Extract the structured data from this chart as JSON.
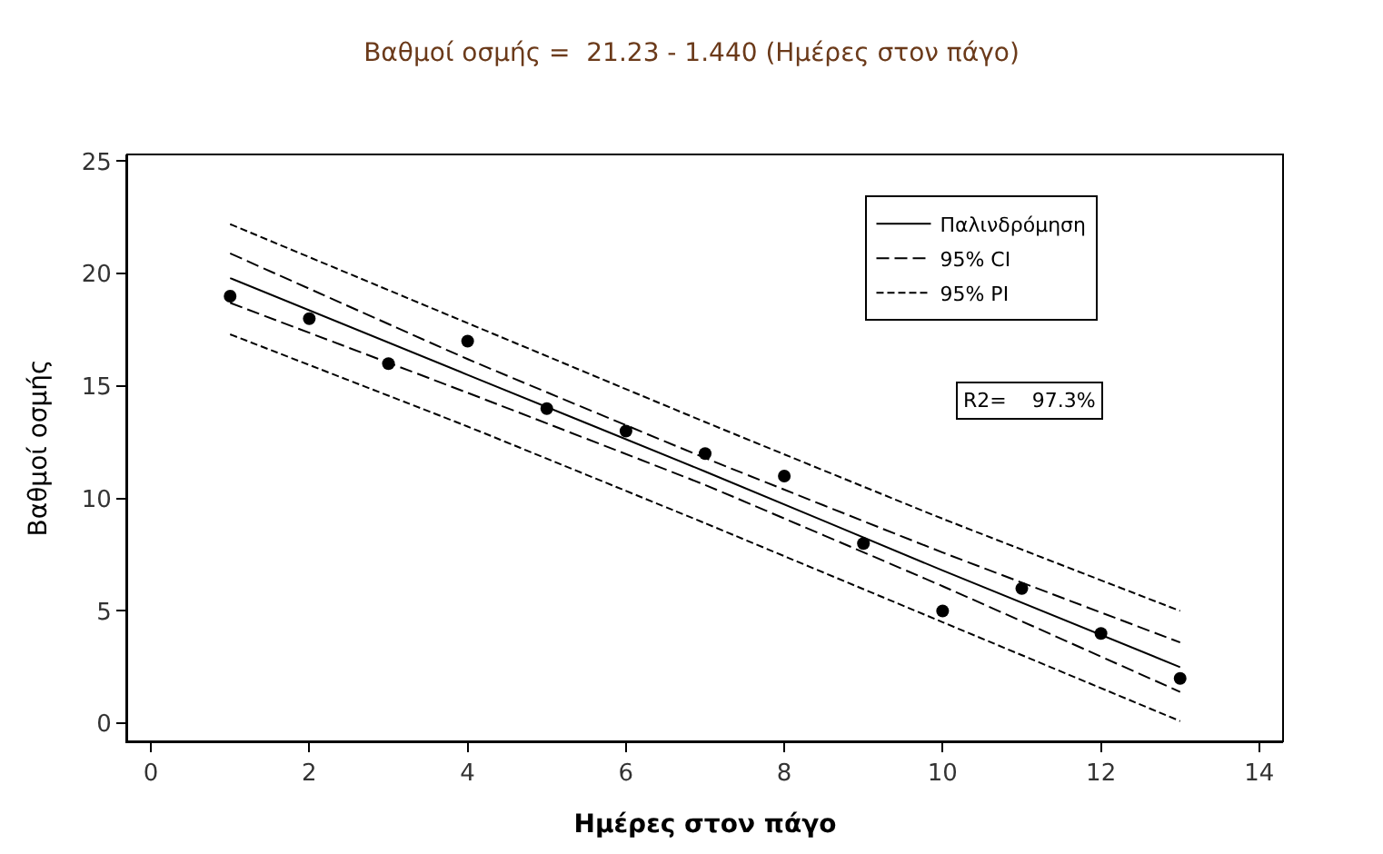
{
  "chart_data": {
    "type": "scatter",
    "title": "Βαθμοί οσμής =  21.23 - 1.440 (Ημέρες στον πάγο)",
    "xlabel": "Ημέρες στον πάγο",
    "ylabel": "Βαθμοί οσμής",
    "xlim": [
      -0.3,
      14.3
    ],
    "xticks": [
      0,
      2,
      4,
      6,
      8,
      10,
      12,
      14
    ],
    "ylim": [
      -0.8,
      25.3
    ],
    "yticks": [
      0,
      5,
      10,
      15,
      20,
      25
    ],
    "legend": "top right",
    "series": [
      {
        "type": "line",
        "name": "Παλινδρόμηση",
        "color": "#000000",
        "line_style": "solid",
        "x": [
          1,
          4,
          7,
          10,
          13
        ],
        "values": [
          19.8,
          15.5,
          11.2,
          6.8,
          2.5
        ]
      },
      {
        "type": "line",
        "name": "95% CI",
        "color": "#000000",
        "line_style": "dashed",
        "x": [
          1,
          4,
          7,
          10,
          13
        ],
        "values": [
          20.9,
          16.2,
          11.8,
          7.6,
          3.6
        ]
      },
      {
        "type": "line",
        "color": "#000000",
        "line_style": "dashed",
        "x": [
          1,
          4,
          7,
          10,
          13
        ],
        "values": [
          18.7,
          14.7,
          10.6,
          6.1,
          1.4
        ]
      },
      {
        "type": "line",
        "name": "95% PI",
        "color": "#000000",
        "line_style": "dotted",
        "x": [
          1,
          4,
          7,
          10,
          13
        ],
        "values": [
          22.2,
          17.8,
          13.4,
          9.1,
          5.0
        ]
      },
      {
        "type": "line",
        "color": "#000000",
        "line_style": "dotted",
        "x": [
          1,
          4,
          7,
          10,
          13
        ],
        "values": [
          17.3,
          13.2,
          8.9,
          4.5,
          0.1
        ]
      },
      {
        "color": "#000000",
        "marker": "circle",
        "x": [
          1,
          2,
          3,
          4,
          5,
          6,
          7,
          8,
          9,
          10,
          11,
          12,
          13
        ],
        "values": [
          19,
          18,
          16,
          17,
          14,
          13,
          12,
          11,
          8,
          5,
          6,
          4,
          2
        ]
      }
    ],
    "annotations": [
      "R2=    97.3%"
    ]
  }
}
